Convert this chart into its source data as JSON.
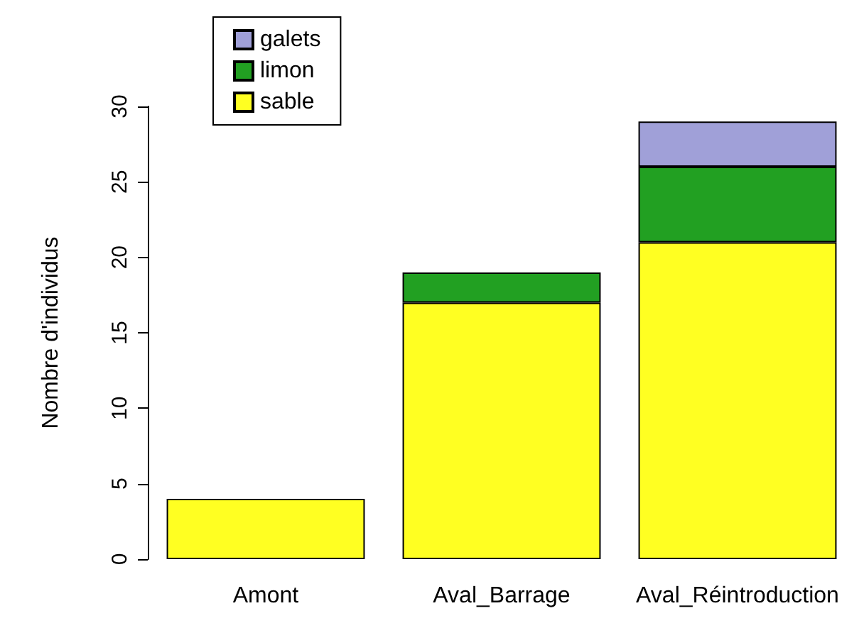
{
  "chart_data": {
    "type": "bar",
    "stacked": true,
    "ylabel": "Nombre d'individus",
    "categories": [
      "Amont",
      "Aval_Barrage",
      "Aval_Réintroduction"
    ],
    "series": [
      {
        "name": "sable",
        "color": "#ffff22",
        "values": [
          4,
          17,
          21
        ]
      },
      {
        "name": "limon",
        "color": "#22a022",
        "values": [
          null,
          2,
          5
        ]
      },
      {
        "name": "galets",
        "color": "#a0a0d8",
        "values": [
          null,
          null,
          3
        ]
      }
    ],
    "ylim": [
      0,
      30
    ],
    "yticks": [
      0,
      5,
      10,
      15,
      20,
      25,
      30
    ],
    "grid": false,
    "legend": "top left"
  }
}
